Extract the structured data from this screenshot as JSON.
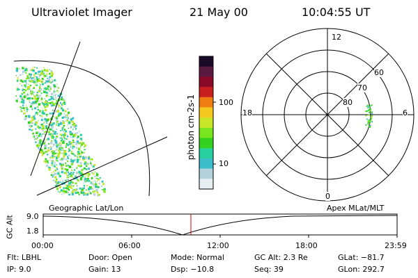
{
  "header": {
    "title": "Ultraviolet Imager",
    "date": "21 May 00",
    "time": "10:04:55 UT"
  },
  "colorbar": {
    "label": "photon cm-2s-1",
    "ticks": [
      "100",
      "10"
    ],
    "colors": [
      "#1a0a2a",
      "#5a1a40",
      "#8b0a2a",
      "#c81e1e",
      "#f07d14",
      "#f5c81e",
      "#c8e628",
      "#78e61e",
      "#32d21e",
      "#28d2a0",
      "#3cbecb",
      "#b4d2dc",
      "#e6eef2"
    ]
  },
  "polar_plot": {
    "labels": {
      "top": "12",
      "left": "18",
      "right": "6",
      "bottom": "0"
    },
    "lat_labels": [
      "60",
      "70",
      "80"
    ]
  },
  "timeline": {
    "left_label": "Geographic Lat/Lon",
    "right_label": "Apex MLat/MLT",
    "y_axis_label": "GC Alt",
    "y_ticks": [
      "9.0",
      "1.8"
    ],
    "x_ticks": [
      "00:00",
      "06:00",
      "12:00",
      "18:00",
      "23:59"
    ],
    "marker_color": "#d00000"
  },
  "footer": {
    "flt": "Flt: LBHL",
    "ip": "IP:  9.0",
    "door": "Door: Open",
    "gain": "Gain: 13",
    "mode": "Mode: Normal",
    "dsp": "Dsp:  −10.8",
    "gcalt": "GC Alt: 2.3 Re",
    "seq": "Seq: 39",
    "glat": "GLat: −81.7",
    "glon": "GLon: 292.7"
  }
}
